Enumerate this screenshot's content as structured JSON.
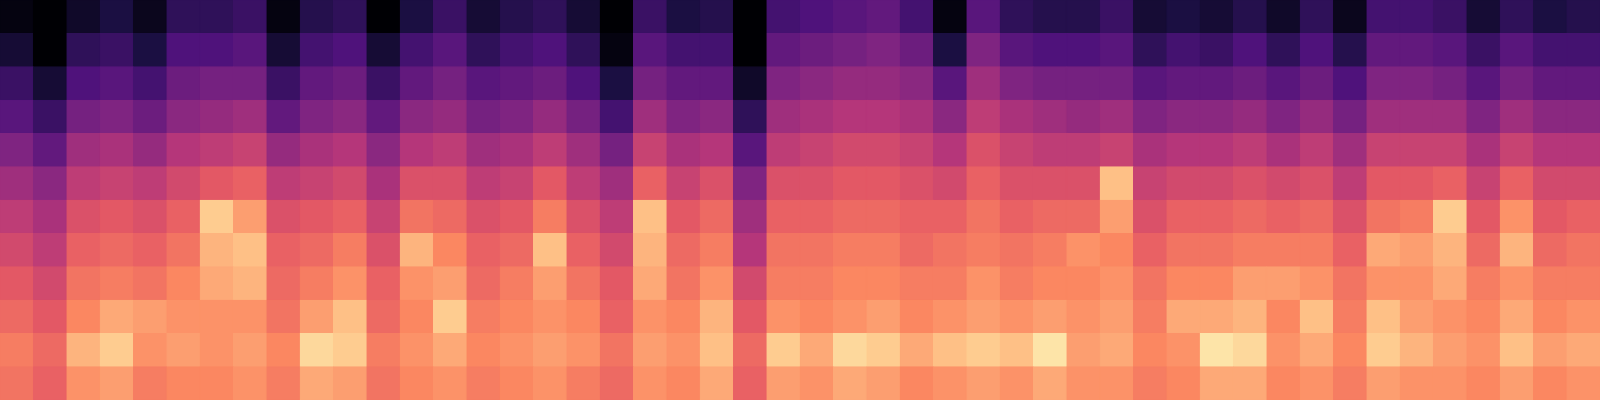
{
  "chart_data": {
    "type": "heatmap",
    "tick_labels": false,
    "zlim": [
      -80,
      0
    ],
    "cells": [
      [
        -24,
        -22,
        -26,
        -30,
        -34,
        -38,
        -44,
        -50,
        -58,
        -64,
        -72,
        -78
      ],
      [
        -28,
        -26,
        -30,
        -34,
        -38,
        -42,
        -48,
        -56,
        -64,
        -72,
        -80,
        -80
      ],
      [
        -18,
        -12,
        -20,
        -24,
        -28,
        -32,
        -38,
        -44,
        -52,
        -60,
        -66,
        -74
      ],
      [
        -16,
        -8,
        -14,
        -22,
        -26,
        -30,
        -36,
        -42,
        -50,
        -58,
        -64,
        -70
      ],
      [
        -22,
        -18,
        -16,
        -24,
        -28,
        -32,
        -38,
        -46,
        -54,
        -62,
        -70,
        -76
      ],
      [
        -20,
        -16,
        -18,
        -20,
        -24,
        -28,
        -34,
        -40,
        -48,
        -54,
        -60,
        -66
      ],
      [
        -20,
        -18,
        -18,
        -14,
        -12,
        -8,
        -30,
        -38,
        -46,
        -52,
        -60,
        -66
      ],
      [
        -18,
        -16,
        -18,
        -12,
        -10,
        -16,
        -28,
        -36,
        -44,
        -52,
        -58,
        -64
      ],
      [
        -22,
        -20,
        -24,
        -26,
        -28,
        -32,
        -38,
        -46,
        -56,
        -64,
        -72,
        -78
      ],
      [
        -14,
        -6,
        -16,
        -22,
        -26,
        -30,
        -36,
        -42,
        -50,
        -56,
        -62,
        -68
      ],
      [
        -16,
        -8,
        -10,
        -18,
        -22,
        -28,
        -34,
        -40,
        -48,
        -54,
        -60,
        -66
      ],
      [
        -24,
        -22,
        -26,
        -28,
        -32,
        -36,
        -42,
        -48,
        -56,
        -64,
        -72,
        -80
      ],
      [
        -20,
        -18,
        -20,
        -18,
        -12,
        -24,
        -32,
        -40,
        -48,
        -56,
        -62,
        -70
      ],
      [
        -18,
        -14,
        -8,
        -16,
        -20,
        -26,
        -32,
        -38,
        -46,
        -52,
        -58,
        -64
      ],
      [
        -22,
        -20,
        -22,
        -26,
        -28,
        -32,
        -38,
        -44,
        -52,
        -58,
        -66,
        -72
      ],
      [
        -20,
        -18,
        -20,
        -22,
        -26,
        -30,
        -36,
        -42,
        -50,
        -56,
        -62,
        -68
      ],
      [
        -18,
        -16,
        -18,
        -16,
        -10,
        -22,
        -30,
        -38,
        -46,
        -54,
        -60,
        -66
      ],
      [
        -22,
        -18,
        -20,
        -24,
        -28,
        -32,
        -38,
        -44,
        -52,
        -60,
        -66,
        -72
      ],
      [
        -26,
        -24,
        -28,
        -30,
        -34,
        -38,
        -44,
        -52,
        -62,
        -70,
        -78,
        -80
      ],
      [
        -18,
        -16,
        -18,
        -14,
        -12,
        -10,
        -28,
        -36,
        -44,
        -52,
        -58,
        -64
      ],
      [
        -20,
        -18,
        -20,
        -24,
        -26,
        -30,
        -36,
        -42,
        -50,
        -56,
        -62,
        -70
      ],
      [
        -14,
        -10,
        -12,
        -18,
        -22,
        -26,
        -32,
        -40,
        -48,
        -56,
        -62,
        -68
      ],
      [
        -28,
        -26,
        -30,
        -34,
        -40,
        -44,
        -50,
        -58,
        -66,
        -74,
        -80,
        -80
      ],
      [
        -16,
        -8,
        -18,
        -22,
        -24,
        -28,
        -32,
        -38,
        -44,
        -50,
        -56,
        -62
      ],
      [
        -18,
        -14,
        -20,
        -22,
        -24,
        -28,
        -32,
        -36,
        -42,
        -48,
        -54,
        -60
      ],
      [
        -14,
        -6,
        -18,
        -20,
        -22,
        -26,
        -30,
        -34,
        -40,
        -46,
        -52,
        -58
      ],
      [
        -16,
        -8,
        -16,
        -20,
        -22,
        -26,
        -30,
        -34,
        -40,
        -46,
        -50,
        -56
      ],
      [
        -20,
        -14,
        -20,
        -22,
        -26,
        -28,
        -32,
        -36,
        -42,
        -48,
        -54,
        -62
      ],
      [
        -18,
        -10,
        -18,
        -22,
        -24,
        -28,
        -34,
        -40,
        -48,
        -58,
        -70,
        -78
      ],
      [
        -16,
        -8,
        -16,
        -18,
        -22,
        -24,
        -28,
        -32,
        -38,
        -44,
        -50,
        -58
      ],
      [
        -18,
        -10,
        -18,
        -22,
        -24,
        -28,
        -32,
        -36,
        -42,
        -50,
        -58,
        -66
      ],
      [
        -14,
        -4,
        -16,
        -20,
        -22,
        -26,
        -32,
        -38,
        -44,
        -52,
        -60,
        -68
      ],
      [
        -18,
        -16,
        -18,
        -20,
        -18,
        -26,
        -32,
        -38,
        -46,
        -52,
        -60,
        -68
      ],
      [
        -18,
        -14,
        -16,
        -18,
        -20,
        -16,
        -10,
        -36,
        -44,
        -52,
        -58,
        -64
      ],
      [
        -22,
        -20,
        -22,
        -24,
        -28,
        -32,
        -36,
        -42,
        -50,
        -58,
        -66,
        -72
      ],
      [
        -20,
        -18,
        -14,
        -20,
        -24,
        -28,
        -34,
        -40,
        -48,
        -56,
        -62,
        -70
      ],
      [
        -14,
        -4,
        -14,
        -20,
        -24,
        -28,
        -34,
        -40,
        -48,
        -56,
        -64,
        -72
      ],
      [
        -14,
        -6,
        -12,
        -16,
        -22,
        -26,
        -32,
        -38,
        -46,
        -54,
        -60,
        -68
      ],
      [
        -20,
        -18,
        -20,
        -16,
        -22,
        -28,
        -34,
        -42,
        -50,
        -58,
        -66,
        -74
      ],
      [
        -18,
        -14,
        -10,
        -18,
        -22,
        -26,
        -32,
        -38,
        -46,
        -54,
        -60,
        -66
      ],
      [
        -22,
        -20,
        -22,
        -24,
        -28,
        -32,
        -38,
        -44,
        -52,
        -60,
        -68,
        -76
      ],
      [
        -16,
        -8,
        -10,
        -18,
        -14,
        -24,
        -30,
        -36,
        -44,
        -50,
        -56,
        -62
      ],
      [
        -18,
        -12,
        -16,
        -18,
        -16,
        -22,
        -30,
        -36,
        -44,
        -50,
        -56,
        -62
      ],
      [
        -18,
        -16,
        -18,
        -14,
        -12,
        -8,
        -28,
        -36,
        -44,
        -52,
        -58,
        -64
      ],
      [
        -20,
        -18,
        -20,
        -22,
        -26,
        -30,
        -36,
        -42,
        -50,
        -58,
        -64,
        -72
      ],
      [
        -16,
        -10,
        -14,
        -18,
        -12,
        -18,
        -28,
        -36,
        -44,
        -52,
        -58,
        -66
      ],
      [
        -20,
        -16,
        -20,
        -22,
        -26,
        -30,
        -34,
        -40,
        -48,
        -56,
        -62,
        -70
      ],
      [
        -18,
        -14,
        -18,
        -22,
        -24,
        -28,
        -34,
        -40,
        -48,
        -56,
        -62,
        -68
      ]
    ]
  }
}
